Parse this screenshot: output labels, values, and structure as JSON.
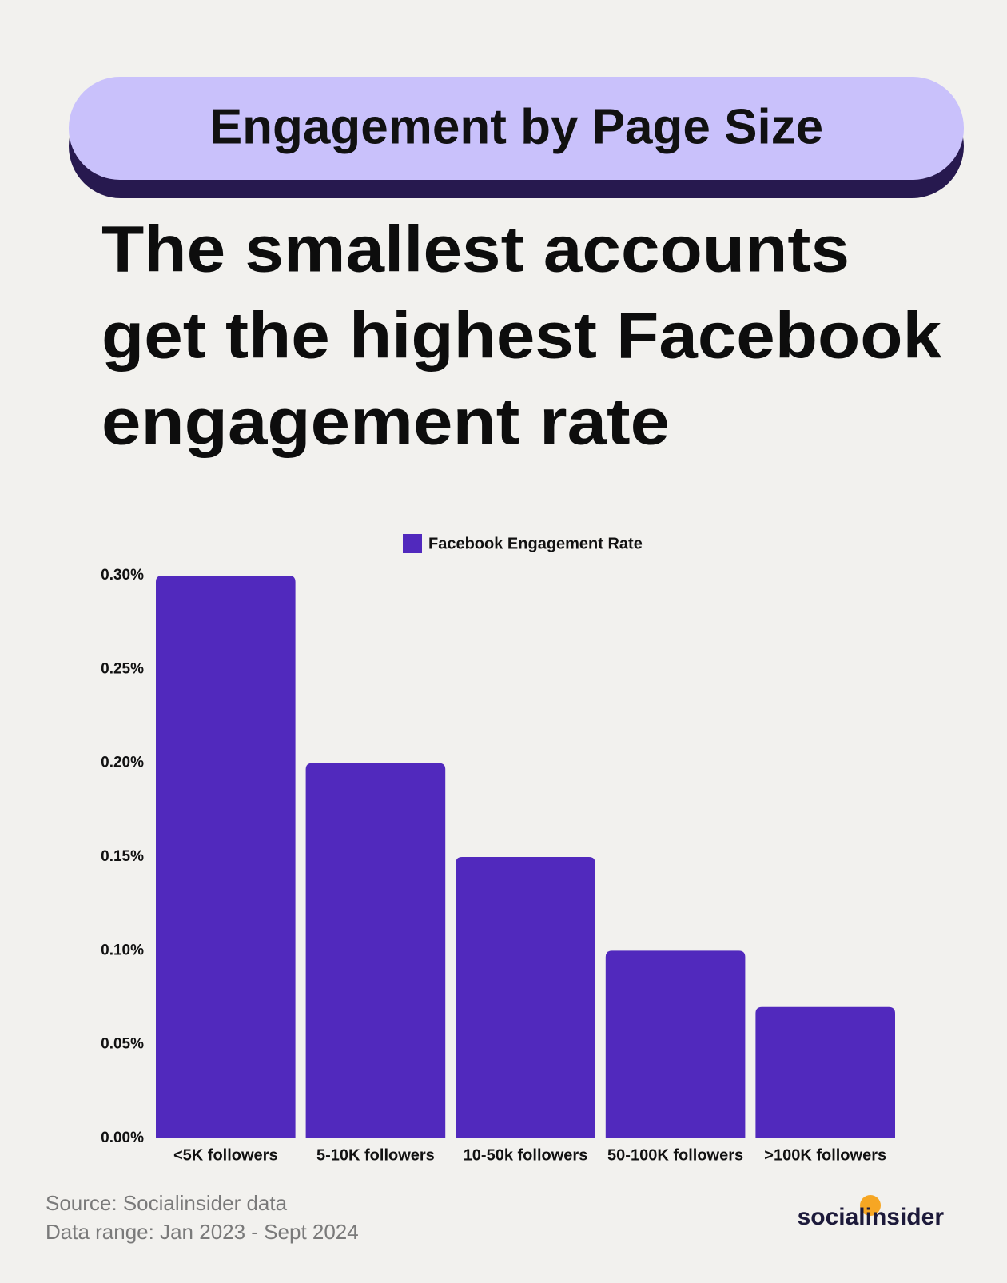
{
  "chart_data": {
    "type": "bar",
    "title": "Engagement by Page Size",
    "subtitle_lines": [
      "The smallest accounts",
      "get the highest Facebook",
      "engagement rate"
    ],
    "categories": [
      "<5K followers",
      "5-10K followers",
      "10-50k followers",
      "50-100K followers",
      ">100K followers"
    ],
    "series": [
      {
        "name": "Facebook Engagement Rate",
        "color": "#5129bd",
        "values": [
          0.3,
          0.2,
          0.15,
          0.1,
          0.07
        ]
      }
    ],
    "ylim": [
      0,
      0.3
    ],
    "yticks": [
      {
        "value": 0,
        "label": "0.00%"
      },
      {
        "value": 0.05,
        "label": "0.05%"
      },
      {
        "value": 0.1,
        "label": "0.10%"
      },
      {
        "value": 0.15,
        "label": "0.15%"
      },
      {
        "value": 0.2,
        "label": "0.20%"
      },
      {
        "value": 0.25,
        "label": "0.25%"
      },
      {
        "value": 0.3,
        "label": "0.30%"
      }
    ],
    "grid": false,
    "legend": "top",
    "source": "Source: Socialinsider data",
    "data_range": "Data range: Jan 2023 - Sept 2024",
    "brand": "socialinsider"
  }
}
